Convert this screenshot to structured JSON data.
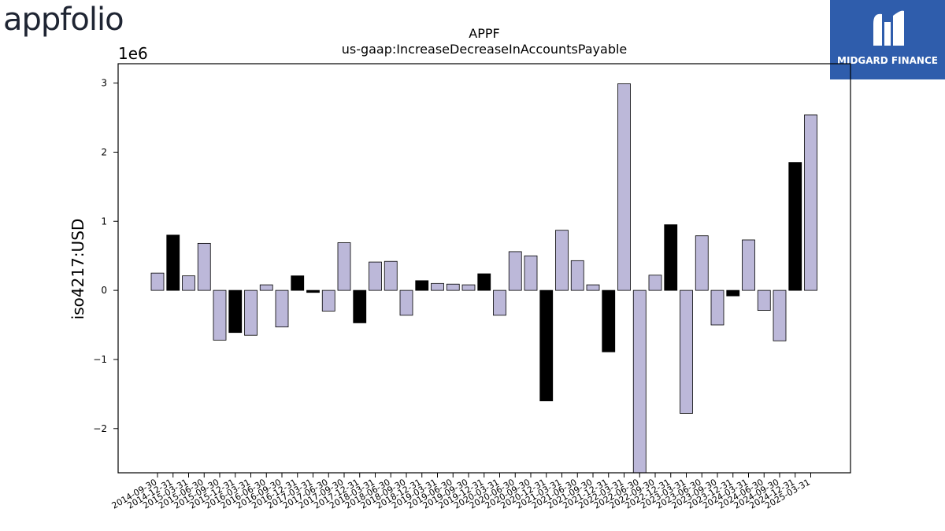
{
  "brand": {
    "logo_text": "appfolio"
  },
  "badge": {
    "text": "MIDGARD FINANCE",
    "color": "#2f5dac"
  },
  "chart_data": {
    "type": "bar",
    "title": "APPF",
    "subtitle": "us-gaap:IncreaseDecreaseInAccountsPayable",
    "ylabel": "iso4217:USD",
    "xlabel": "",
    "scale_label": "1e6",
    "ylim": [
      -2.64,
      3.28
    ],
    "yticks": [
      -2,
      -1,
      0,
      1,
      2,
      3
    ],
    "ytick_labels": [
      "−2",
      "−1",
      "0",
      "1",
      "2",
      "3"
    ],
    "colors": {
      "default": "#bcb8d9",
      "highlight": "#000000"
    },
    "categories": [
      "2014-09-30",
      "2014-12-31",
      "2015-03-31",
      "2015-06-30",
      "2015-09-30",
      "2015-12-31",
      "2016-03-31",
      "2016-06-30",
      "2016-09-30",
      "2016-12-31",
      "2017-03-31",
      "2017-06-30",
      "2017-09-30",
      "2017-12-31",
      "2018-03-31",
      "2018-06-30",
      "2018-09-30",
      "2018-12-31",
      "2019-03-31",
      "2019-06-30",
      "2019-09-30",
      "2019-12-31",
      "2020-03-31",
      "2020-06-30",
      "2020-09-30",
      "2020-12-31",
      "2021-03-31",
      "2021-06-30",
      "2021-09-30",
      "2021-12-31",
      "2022-03-31",
      "2022-06-30",
      "2022-09-30",
      "2022-12-31",
      "2023-03-31",
      "2023-06-30",
      "2023-09-30",
      "2023-12-31",
      "2024-03-31",
      "2024-06-30",
      "2024-09-30",
      "2024-12-31",
      "2025-03-31"
    ],
    "values": [
      0.25,
      0.8,
      0.21,
      0.68,
      -0.72,
      -0.61,
      -0.65,
      0.08,
      -0.53,
      0.21,
      -0.03,
      -0.3,
      0.69,
      -0.47,
      0.41,
      0.42,
      -0.36,
      0.14,
      0.1,
      0.09,
      0.08,
      0.24,
      -0.36,
      0.56,
      0.5,
      -1.6,
      0.87,
      0.43,
      0.08,
      -0.89,
      2.99,
      -2.64,
      0.22,
      0.95,
      -1.78,
      0.79,
      -0.5,
      -0.08,
      0.73,
      -0.29,
      -0.73,
      1.85,
      2.54
    ],
    "highlight": [
      false,
      true,
      false,
      false,
      false,
      true,
      false,
      false,
      false,
      true,
      true,
      false,
      false,
      true,
      false,
      false,
      false,
      true,
      false,
      false,
      false,
      true,
      false,
      false,
      false,
      true,
      false,
      false,
      false,
      true,
      false,
      false,
      false,
      true,
      false,
      false,
      false,
      true,
      false,
      false,
      false,
      true,
      false
    ]
  }
}
